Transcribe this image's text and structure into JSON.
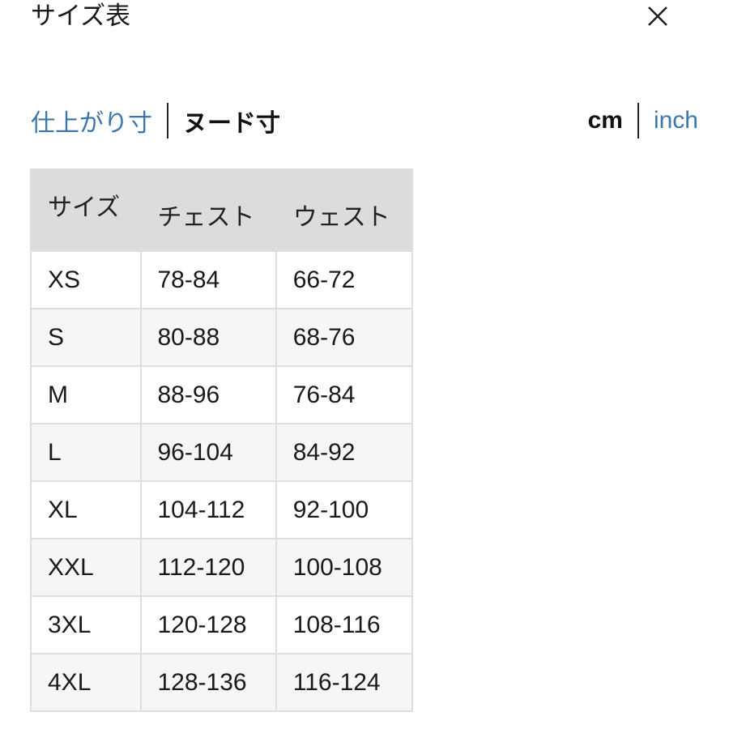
{
  "header": {
    "title": "サイズ表",
    "close_icon": "close-icon"
  },
  "measure_tabs": [
    {
      "label": "仕上がり寸",
      "active": false
    },
    {
      "label": "ヌード寸",
      "active": true
    }
  ],
  "unit_tabs": [
    {
      "label": "cm",
      "active": true
    },
    {
      "label": "inch",
      "active": false
    }
  ],
  "colors": {
    "link": "#3b77ad",
    "header_bg": "#dcdcdc",
    "row_alt": "#f6f6f6"
  },
  "table": {
    "columns": [
      "サイズ",
      "チェスト",
      "ウェスト"
    ],
    "rows": [
      [
        "XS",
        "78-84",
        "66-72"
      ],
      [
        "S",
        "80-88",
        "68-76"
      ],
      [
        "M",
        "88-96",
        "76-84"
      ],
      [
        "L",
        "96-104",
        "84-92"
      ],
      [
        "XL",
        "104-112",
        "92-100"
      ],
      [
        "XXL",
        "112-120",
        "100-108"
      ],
      [
        "3XL",
        "120-128",
        "108-116"
      ],
      [
        "4XL",
        "128-136",
        "116-124"
      ]
    ]
  }
}
